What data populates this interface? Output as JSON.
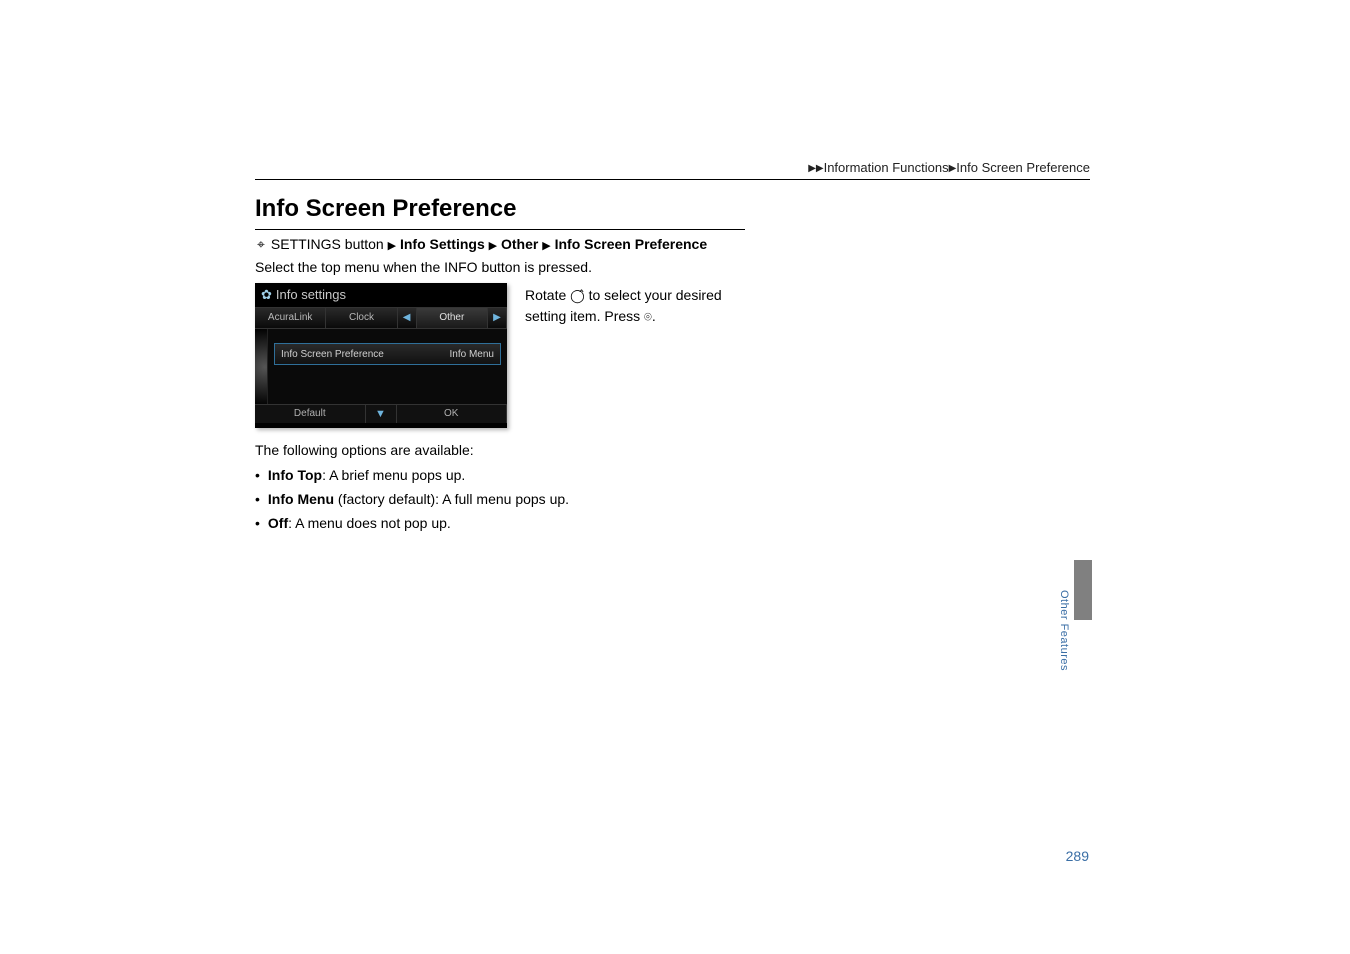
{
  "breadcrumb": {
    "seg1": "Information Functions",
    "seg2": "Info Screen Preference"
  },
  "heading": "Info Screen Preference",
  "path": {
    "button_label": "SETTINGS button",
    "seg_info": "Info Settings",
    "seg_other": "Other",
    "seg_pref": "Info Screen Preference"
  },
  "instruction": "Select the top menu when the INFO button is pressed.",
  "screenshot": {
    "title": "Info settings",
    "tabs": {
      "t1": "AcuraLink",
      "t2": "Clock",
      "t3": "Other"
    },
    "row": {
      "label": "Info Screen Preference",
      "value": "Info Menu"
    },
    "bottom": {
      "b1": "Default",
      "b2": "OK"
    }
  },
  "side_text": {
    "line1_a": "Rotate ",
    "line1_b": " to select your desired",
    "line2_a": "setting item. Press ",
    "line2_b": "."
  },
  "options_intro": "The following options are available:",
  "options": {
    "o1_label": "Info Top",
    "o1_desc": ": A brief menu pops up.",
    "o2_label": "Info Menu",
    "o2_desc": " (factory default): A full menu pops up.",
    "o3_label": "Off",
    "o3_desc": ": A menu does not pop up."
  },
  "side_tab_label": "Other Features",
  "page_number": "289",
  "colors": {
    "link_blue": "#3a6ea5",
    "tab_gray": "#808080",
    "screenshot_accent": "#6fb4dd"
  }
}
